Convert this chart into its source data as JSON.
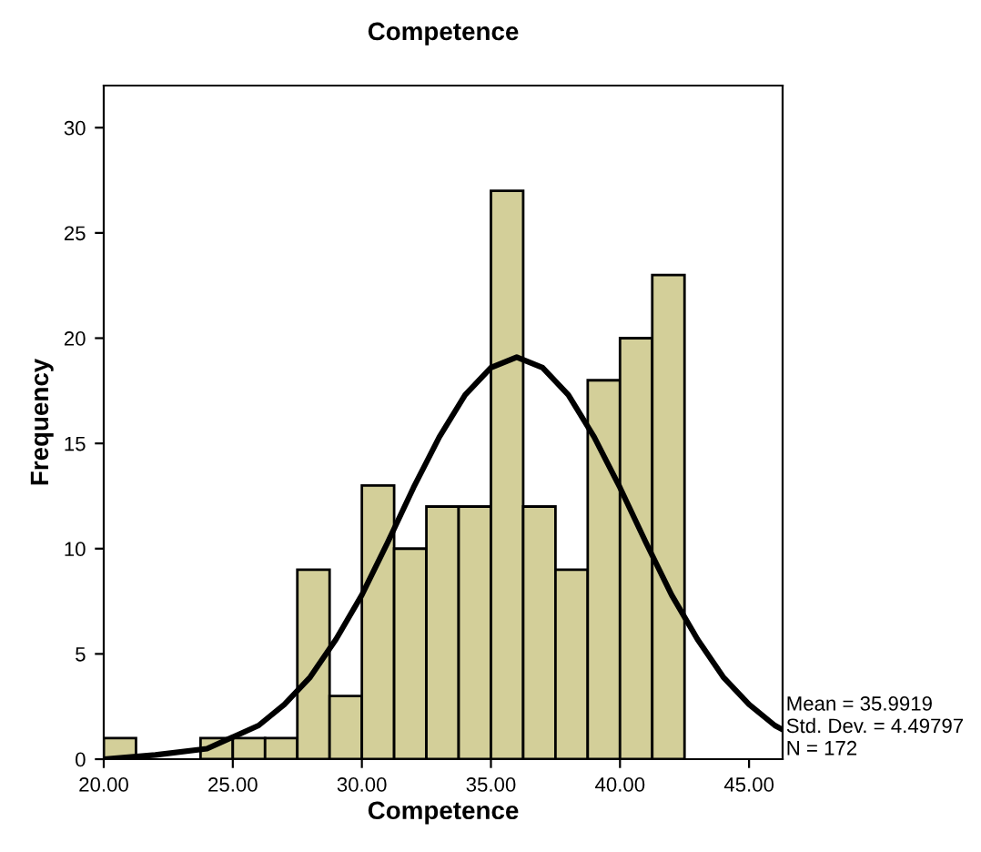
{
  "chart_data": {
    "type": "histogram",
    "title": "Competence",
    "xlabel": "Competence",
    "ylabel": "Frequency",
    "bins": [
      20,
      21.25,
      22.5,
      23.75,
      25,
      26.25,
      27.5,
      28.75,
      30,
      31.25,
      32.5,
      33.75,
      35,
      36.25,
      37.5,
      38.75,
      40,
      41.25,
      42.5
    ],
    "values": [
      1,
      0,
      0,
      1,
      1,
      1,
      9,
      3,
      13,
      10,
      12,
      12,
      27,
      12,
      9,
      18,
      20,
      23
    ],
    "color": "#d3cf99",
    "series": [
      {
        "type": "line",
        "color": "#000000",
        "x": [
          20,
          22,
          24,
          26,
          27,
          28,
          29,
          30,
          31,
          32,
          33,
          34,
          35,
          36,
          37,
          38,
          39,
          40,
          41,
          42,
          43,
          44,
          45,
          46,
          46.3
        ],
        "values": [
          0.0,
          0.2,
          0.5,
          1.6,
          2.6,
          3.9,
          5.7,
          7.8,
          10.3,
          12.9,
          15.3,
          17.3,
          18.6,
          19.1,
          18.6,
          17.3,
          15.3,
          12.9,
          10.3,
          7.8,
          5.7,
          3.9,
          2.6,
          1.6,
          1.4
        ]
      }
    ],
    "xlim": [
      20,
      46.3
    ],
    "ylim": [
      0,
      32
    ],
    "xticks": [
      {
        "value": 20,
        "label": "20.00"
      },
      {
        "value": 25,
        "label": "25.00"
      },
      {
        "value": 30,
        "label": "30.00"
      },
      {
        "value": 35,
        "label": "35.00"
      },
      {
        "value": 40,
        "label": "40.00"
      },
      {
        "value": 45,
        "label": "45.00"
      }
    ],
    "yticks": [
      0,
      5,
      10,
      15,
      20,
      25,
      30
    ],
    "annotations": [
      "Mean = 35.9919",
      "Std. Dev. = 4.49797",
      "N = 172"
    ],
    "grid": false,
    "legend": false
  }
}
